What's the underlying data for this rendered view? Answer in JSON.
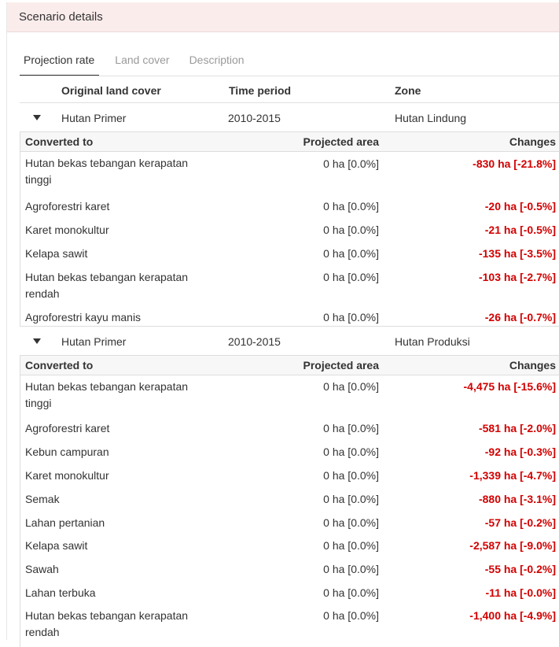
{
  "panel": {
    "title": "Scenario details"
  },
  "tabs": [
    {
      "label": "Projection rate",
      "active": true
    },
    {
      "label": "Land cover",
      "active": false
    },
    {
      "label": "Description",
      "active": false
    }
  ],
  "columns": {
    "original": "Original land cover",
    "period": "Time period",
    "zone": "Zone"
  },
  "sub_columns": {
    "converted": "Converted to",
    "projected": "Projected area",
    "changes": "Changes"
  },
  "groups": [
    {
      "land_cover": "Hutan Primer",
      "period": "2010-2015",
      "zone": "Hutan Lindung",
      "rows": [
        {
          "to": "Hutan bekas tebangan kerapatan tinggi",
          "projected": "0 ha [0.0%]",
          "change": "-830 ha [-21.8%]"
        },
        {
          "to": "Agroforestri karet",
          "projected": "0 ha [0.0%]",
          "change": "-20 ha [-0.5%]"
        },
        {
          "to": "Karet monokultur",
          "projected": "0 ha [0.0%]",
          "change": "-21 ha [-0.5%]"
        },
        {
          "to": "Kelapa sawit",
          "projected": "0 ha [0.0%]",
          "change": "-135 ha [-3.5%]"
        },
        {
          "to": "Hutan bekas tebangan kerapatan rendah",
          "projected": "0 ha [0.0%]",
          "change": "-103 ha [-2.7%]"
        },
        {
          "to": "Agroforestri kayu manis",
          "projected": "0 ha [0.0%]",
          "change": "-26 ha [-0.7%]"
        }
      ]
    },
    {
      "land_cover": "Hutan Primer",
      "period": "2010-2015",
      "zone": "Hutan Produksi",
      "rows": [
        {
          "to": "Hutan bekas tebangan kerapatan tinggi",
          "projected": "0 ha [0.0%]",
          "change": "-4,475 ha [-15.6%]"
        },
        {
          "to": "Agroforestri karet",
          "projected": "0 ha [0.0%]",
          "change": "-581 ha [-2.0%]"
        },
        {
          "to": "Kebun campuran",
          "projected": "0 ha [0.0%]",
          "change": "-92 ha [-0.3%]"
        },
        {
          "to": "Karet monokultur",
          "projected": "0 ha [0.0%]",
          "change": "-1,339 ha [-4.7%]"
        },
        {
          "to": "Semak",
          "projected": "0 ha [0.0%]",
          "change": "-880 ha [-3.1%]"
        },
        {
          "to": "Lahan pertanian",
          "projected": "0 ha [0.0%]",
          "change": "-57 ha [-0.2%]"
        },
        {
          "to": "Kelapa sawit",
          "projected": "0 ha [0.0%]",
          "change": "-2,587 ha [-9.0%]"
        },
        {
          "to": "Sawah",
          "projected": "0 ha [0.0%]",
          "change": "-55 ha [-0.2%]"
        },
        {
          "to": "Lahan terbuka",
          "projected": "0 ha [0.0%]",
          "change": "-11 ha [-0.0%]"
        },
        {
          "to": "Hutan bekas tebangan kerapatan rendah",
          "projected": "0 ha [0.0%]",
          "change": "-1,400 ha [-4.9%]"
        }
      ]
    }
  ]
}
